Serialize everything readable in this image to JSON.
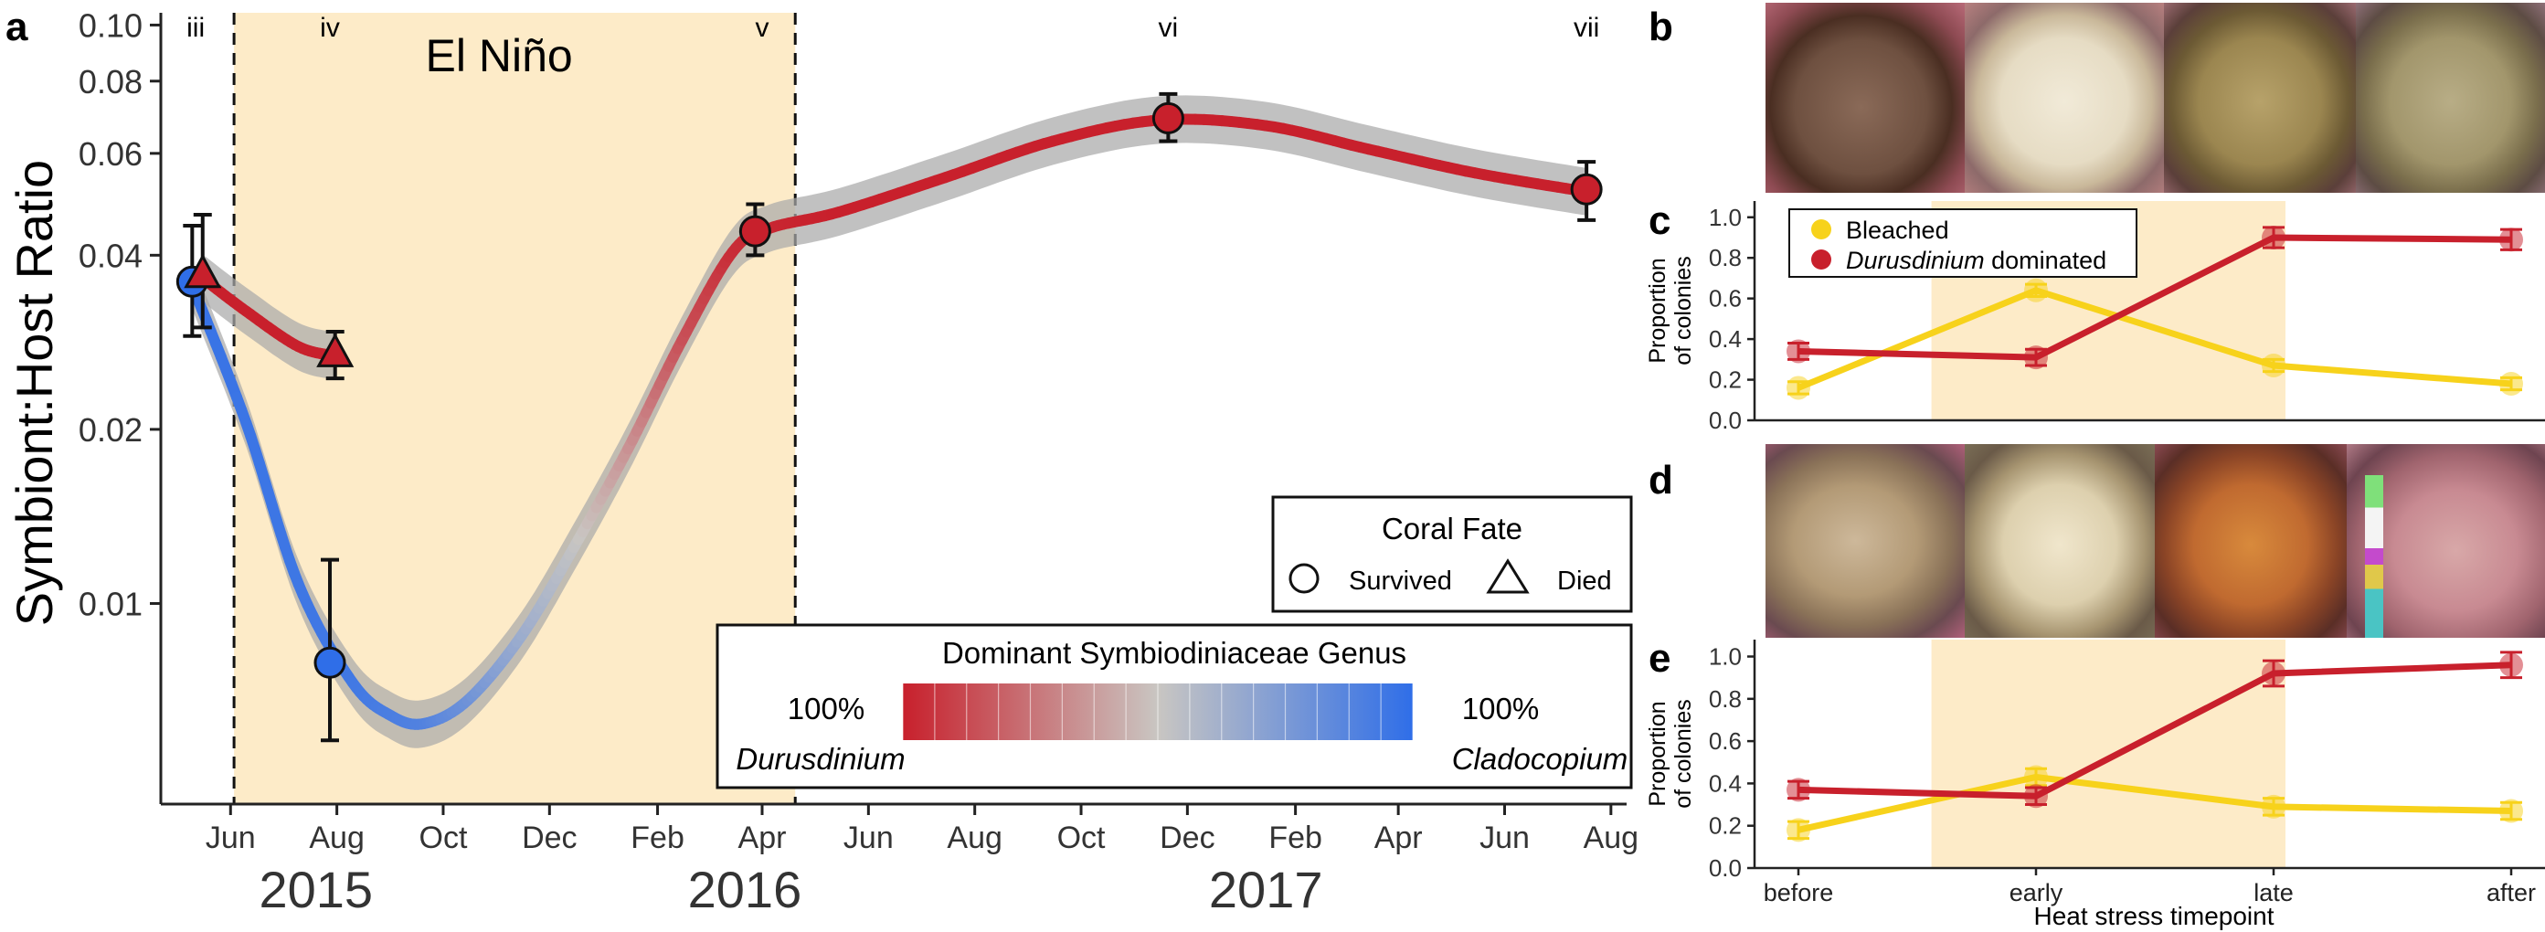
{
  "panels": {
    "a": "a",
    "b": "b",
    "c": "c",
    "d": "d",
    "e": "e"
  },
  "colors": {
    "durusdinium": "#c8202c",
    "cladocopium": "#2f6ee8",
    "bleached": "#f7d21b",
    "elnino_fill": "#fdebc8",
    "ci_band": "#a9a9a9"
  },
  "chart_data": [
    {
      "id": "a",
      "type": "line",
      "ylabel": "Symbiont:Host Ratio",
      "yscale": "log",
      "ylim": [
        0.0045,
        0.105
      ],
      "yticks": [
        {
          "v": 0.1,
          "label": "0.10"
        },
        {
          "v": 0.08,
          "label": "0.08"
        },
        {
          "v": 0.06,
          "label": "0.06"
        },
        {
          "v": 0.04,
          "label": "0.04"
        },
        {
          "v": 0.02,
          "label": "0.02"
        },
        {
          "v": 0.01,
          "label": "0.01"
        }
      ],
      "xlim": [
        "2015-04-22",
        "2017-08-10"
      ],
      "xticks": [
        {
          "date": "2015-06-01",
          "label": "Jun"
        },
        {
          "date": "2015-08-01",
          "label": "Aug"
        },
        {
          "date": "2015-10-01",
          "label": "Oct"
        },
        {
          "date": "2015-12-01",
          "label": "Dec"
        },
        {
          "date": "2016-02-01",
          "label": "Feb"
        },
        {
          "date": "2016-04-01",
          "label": "Apr"
        },
        {
          "date": "2016-06-01",
          "label": "Jun"
        },
        {
          "date": "2016-08-01",
          "label": "Aug"
        },
        {
          "date": "2016-10-01",
          "label": "Oct"
        },
        {
          "date": "2016-12-01",
          "label": "Dec"
        },
        {
          "date": "2017-02-01",
          "label": "Feb"
        },
        {
          "date": "2017-04-01",
          "label": "Apr"
        },
        {
          "date": "2017-06-01",
          "label": "Jun"
        },
        {
          "date": "2017-08-01",
          "label": "Aug"
        }
      ],
      "years": [
        {
          "label": "2015",
          "date": "2015-07-20"
        },
        {
          "label": "2016",
          "date": "2016-03-22"
        },
        {
          "label": "2017",
          "date": "2017-01-15"
        }
      ],
      "elnino": {
        "label": "El Niño",
        "start": "2015-06-03",
        "end": "2016-04-20"
      },
      "stages": [
        {
          "label": "iii",
          "date": "2015-05-12"
        },
        {
          "label": "iv",
          "date": "2015-07-28"
        },
        {
          "label": "v",
          "date": "2016-04-01"
        },
        {
          "label": "vi",
          "date": "2016-11-20"
        },
        {
          "label": "vii",
          "date": "2017-07-18"
        }
      ],
      "points": [
        {
          "date": "2015-05-10",
          "y": 0.036,
          "lo": 0.029,
          "hi": 0.045,
          "fate": "survived",
          "genus": "cladocopium"
        },
        {
          "date": "2015-05-16",
          "y": 0.037,
          "lo": 0.03,
          "hi": 0.047,
          "fate": "died",
          "genus": "durusdinium"
        },
        {
          "date": "2015-07-28",
          "y": 0.0079,
          "lo": 0.0058,
          "hi": 0.0119,
          "fate": "survived",
          "genus": "cladocopium"
        },
        {
          "date": "2015-07-31",
          "y": 0.027,
          "lo": 0.0245,
          "hi": 0.0295,
          "fate": "died",
          "genus": "durusdinium"
        },
        {
          "date": "2016-03-28",
          "y": 0.044,
          "lo": 0.04,
          "hi": 0.049,
          "fate": "survived",
          "genus": "durusdinium"
        },
        {
          "date": "2016-11-20",
          "y": 0.069,
          "lo": 0.063,
          "hi": 0.076,
          "fate": "survived",
          "genus": "durusdinium"
        },
        {
          "date": "2017-07-18",
          "y": 0.052,
          "lo": 0.046,
          "hi": 0.058,
          "fate": "survived",
          "genus": "durusdinium"
        }
      ],
      "series": [
        {
          "fate": "survived",
          "samples": [
            {
              "date": "2015-05-10",
              "y": 0.0355,
              "genus": 0.95
            },
            {
              "date": "2015-06-10",
              "y": 0.0205,
              "genus": 0.92
            },
            {
              "date": "2015-07-10",
              "y": 0.0108,
              "genus": 0.9
            },
            {
              "date": "2015-08-10",
              "y": 0.0073,
              "genus": 0.88
            },
            {
              "date": "2015-09-01",
              "y": 0.0064,
              "genus": 0.82
            },
            {
              "date": "2015-09-20",
              "y": 0.0062,
              "genus": 0.78
            },
            {
              "date": "2015-10-15",
              "y": 0.0068,
              "genus": 0.6
            },
            {
              "date": "2015-11-15",
              "y": 0.0088,
              "genus": 0.3
            },
            {
              "date": "2015-12-15",
              "y": 0.0125,
              "genus": 0.05
            },
            {
              "date": "2016-01-15",
              "y": 0.0185,
              "genus": -0.3
            },
            {
              "date": "2016-02-15",
              "y": 0.0285,
              "genus": -0.7
            },
            {
              "date": "2016-03-15",
              "y": 0.0405,
              "genus": -0.92
            },
            {
              "date": "2016-04-05",
              "y": 0.0445,
              "genus": -0.96
            },
            {
              "date": "2016-05-15",
              "y": 0.0475,
              "genus": -1
            },
            {
              "date": "2016-07-15",
              "y": 0.0545,
              "genus": -1
            },
            {
              "date": "2016-09-15",
              "y": 0.063,
              "genus": -1
            },
            {
              "date": "2016-11-15",
              "y": 0.0685,
              "genus": -1
            },
            {
              "date": "2017-01-15",
              "y": 0.067,
              "genus": -1
            },
            {
              "date": "2017-03-15",
              "y": 0.061,
              "genus": -1
            },
            {
              "date": "2017-05-15",
              "y": 0.0555,
              "genus": -1
            },
            {
              "date": "2017-07-18",
              "y": 0.0515,
              "genus": -1
            }
          ]
        },
        {
          "fate": "died",
          "samples": [
            {
              "date": "2015-05-16",
              "y": 0.0365,
              "genus": -1
            },
            {
              "date": "2015-06-10",
              "y": 0.032,
              "genus": -1
            },
            {
              "date": "2015-07-10",
              "y": 0.0278,
              "genus": -1
            },
            {
              "date": "2015-07-31",
              "y": 0.0268,
              "genus": -1
            }
          ]
        }
      ],
      "legend_fate": {
        "title": "Coral Fate",
        "survived": "Survived",
        "died": "Died"
      },
      "legend_genus": {
        "title": "Dominant Symbiodiniaceae Genus",
        "left_pct": "100%",
        "right_pct": "100%",
        "left_genus": "Durusdinium",
        "right_genus": "Cladocopium"
      }
    },
    {
      "id": "c",
      "type": "line",
      "ylabel": "Proportion of colonies",
      "ylabel_lines": [
        "Proportion",
        "of colonies"
      ],
      "ylim": [
        0,
        1.08
      ],
      "yticks": [
        "0.0",
        "0.2",
        "0.4",
        "0.6",
        "0.8",
        "1.0"
      ],
      "categories": [
        "before",
        "early",
        "late",
        "after"
      ],
      "series": [
        {
          "name": "Bleached",
          "key": "bleached",
          "values": [
            0.16,
            0.64,
            0.27,
            0.18
          ],
          "err": [
            0.03,
            0.03,
            0.03,
            0.03
          ]
        },
        {
          "name": "Durusdinium dominated",
          "key": "durusdinium",
          "values": [
            0.34,
            0.31,
            0.9,
            0.89
          ],
          "err": [
            0.04,
            0.04,
            0.05,
            0.05
          ]
        }
      ],
      "legend": {
        "bleached": "Bleached",
        "durus_italic": "Durusdinium",
        "durus_rest": " dominated"
      }
    },
    {
      "id": "e",
      "type": "line",
      "ylabel": "Proportion of colonies",
      "ylabel_lines": [
        "Proportion",
        "of colonies"
      ],
      "xlabel": "Heat stress timepoint",
      "ylim": [
        0,
        1.08
      ],
      "yticks": [
        "0.0",
        "0.2",
        "0.4",
        "0.6",
        "0.8",
        "1.0"
      ],
      "categories": [
        "before",
        "early",
        "late",
        "after"
      ],
      "series": [
        {
          "name": "Bleached",
          "key": "bleached",
          "values": [
            0.18,
            0.43,
            0.29,
            0.27
          ],
          "err": [
            0.04,
            0.04,
            0.04,
            0.04
          ]
        },
        {
          "name": "Durusdinium dominated",
          "key": "durusdinium",
          "values": [
            0.37,
            0.34,
            0.92,
            0.96
          ],
          "err": [
            0.04,
            0.04,
            0.06,
            0.06
          ]
        }
      ]
    }
  ]
}
